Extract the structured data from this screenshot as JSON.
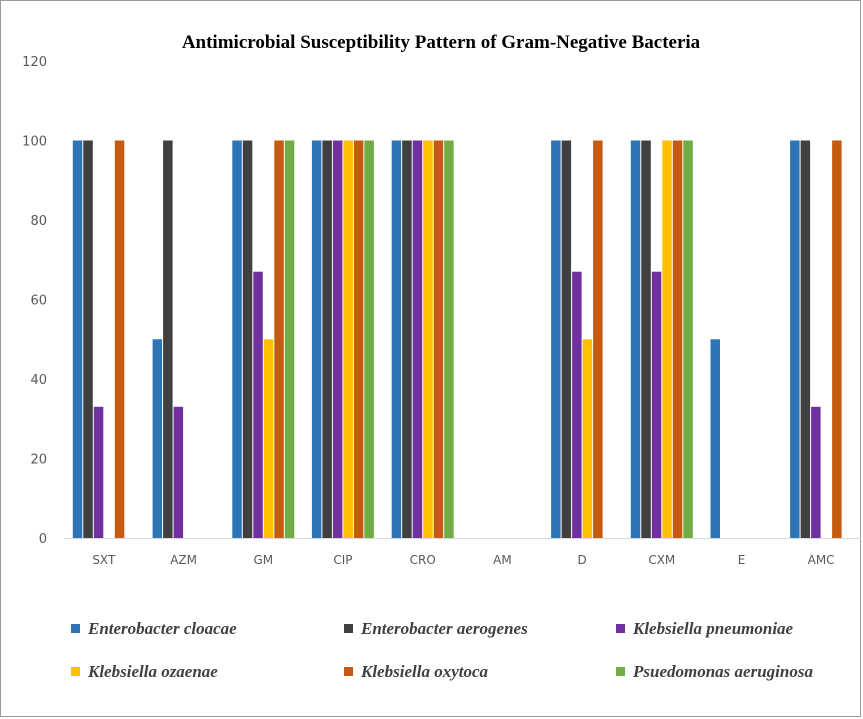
{
  "chart_data": {
    "type": "bar",
    "title": "Antimicrobial  Susceptibility Pattern of Gram-Negative Bacteria",
    "xlabel": "",
    "ylabel": "",
    "ylim": [
      0,
      120
    ],
    "yticks": [
      0,
      20,
      40,
      60,
      80,
      100,
      120
    ],
    "categories": [
      "SXT",
      "AZM",
      "GM",
      "CIP",
      "CRO",
      "AM",
      "D",
      "CXM",
      "E",
      "AMC"
    ],
    "grid": false,
    "legend_position": "bottom",
    "series": [
      {
        "name": "Enterobacter cloacae",
        "color": "#2e75b6",
        "values": [
          100,
          50,
          100,
          100,
          100,
          0,
          100,
          100,
          50,
          100
        ]
      },
      {
        "name": "Enterobacter aerogenes",
        "color": "#404040",
        "values": [
          100,
          100,
          100,
          100,
          100,
          0,
          100,
          100,
          0,
          100
        ]
      },
      {
        "name": "Klebsiella pneumoniae",
        "color": "#7030a0",
        "values": [
          33,
          33,
          67,
          100,
          100,
          0,
          67,
          67,
          0,
          33
        ]
      },
      {
        "name": "Klebsiella ozaenae",
        "color": "#ffc000",
        "values": [
          0,
          0,
          50,
          100,
          100,
          0,
          50,
          100,
          0,
          0
        ]
      },
      {
        "name": "Klebsiella oxytoca",
        "color": "#c55a11",
        "values": [
          100,
          0,
          100,
          100,
          100,
          0,
          100,
          100,
          0,
          100
        ]
      },
      {
        "name": "Psuedomonas aeruginosa",
        "color": "#70ad47",
        "values": [
          0,
          0,
          100,
          100,
          100,
          0,
          0,
          100,
          0,
          0
        ]
      }
    ]
  }
}
